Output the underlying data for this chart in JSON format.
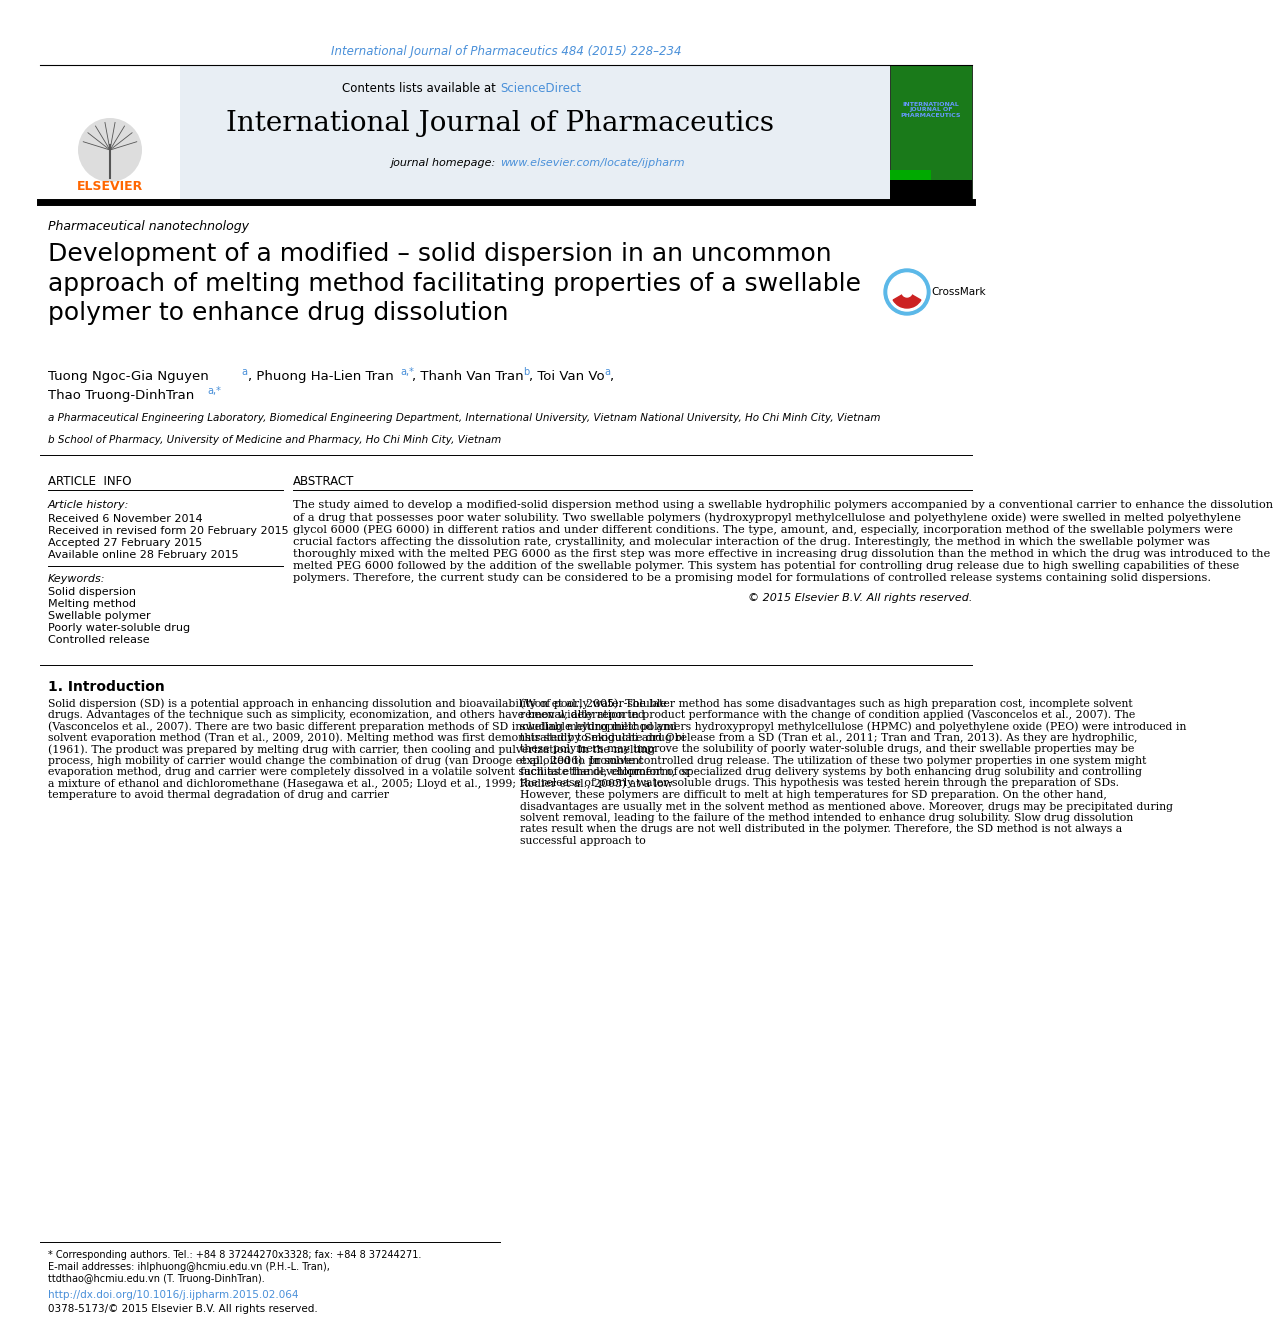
{
  "page_bg": "#ffffff",
  "top_citation": "International Journal of Pharmaceutics 484 (2015) 228–234",
  "top_citation_color": "#4a90d9",
  "header_bg": "#e8eef4",
  "journal_title": "International Journal of Pharmaceutics",
  "contents_text": "Contents lists available at ",
  "sciencedirect_text": "ScienceDirect",
  "sciencedirect_color": "#4a90d9",
  "homepage_text": "journal homepage: ",
  "homepage_url": "www.elsevier.com/locate/ijpharm",
  "homepage_color": "#4a90d9",
  "section_label": "Pharmaceutical nanotechnology",
  "article_title": "Development of a modified – solid dispersion in an uncommon\napproach of melting method facilitating properties of a swellable\npolymer to enhance drug dissolution",
  "article_info_title": "ARTICLE  INFO",
  "article_history_label": "Article history:",
  "received": "Received 6 November 2014",
  "revised": "Received in revised form 20 February 2015",
  "accepted": "Accepted 27 February 2015",
  "available": "Available online 28 February 2015",
  "keywords_label": "Keywords:",
  "keywords": [
    "Solid dispersion",
    "Melting method",
    "Swellable polymer",
    "Poorly water-soluble drug",
    "Controlled release"
  ],
  "abstract_title": "ABSTRACT",
  "abstract_text": "The study aimed to develop a modified-solid dispersion method using a swellable hydrophilic polymers accompanied by a conventional carrier to enhance the dissolution of a drug that possesses poor water solubility. Two swellable polymers (hydroxypropyl methylcellulose and polyethylene oxide) were swelled in melted polyethylene glycol 6000 (PEG 6000) in different ratios and under different conditions. The type, amount, and, especially, incorporation method of the swellable polymers were crucial factors affecting the dissolution rate, crystallinity, and molecular interaction of the drug. Interestingly, the method in which the swellable polymer was thoroughly mixed with the melted PEG 6000 as the first step was more effective in increasing drug dissolution than the method in which the drug was introduced to the melted PEG 6000 followed by the addition of the swellable polymer. This system has potential for controlling drug release due to high swelling capabilities of these polymers. Therefore, the current study can be considered to be a promising model for formulations of controlled release systems containing solid dispersions.",
  "copyright_text": "© 2015 Elsevier B.V. All rights reserved.",
  "intro_title": "1. Introduction",
  "intro_col1": "Solid dispersion (SD) is a potential approach in enhancing dissolution and bioavailability of poorly water-soluble drugs. Advantages of the technique such as simplicity, economization, and others have been widely reported (Vasconcelos et al., 2007). There are two basic different preparation methods of SD including melting method and solvent evaporation method (Tran et al., 2009, 2010). Melting method was first demonstrated by Sekiguchi and Obi (1961). The product was prepared by melting drug with carrier, then cooling and pulverization. In the melting process, high mobility of carrier would change the combination of drug (van Drooge et al., 2006). In solvent evaporation method, drug and carrier were completely dissolved in a volatile solvent such as ethanol, chloroform, or a mixture of ethanol and dichloromethane (Hasegawa et al., 2005; Lloyd et al., 1999; Rodier et al., 2005) at a low temperature to avoid thermal degradation of drug and carrier",
  "intro_col2": "(Won et al., 2005). The later method has some disadvantages such as high preparation cost, incomplete solvent removal, alteration in product performance with the change of condition applied (Vasconcelos et al., 2007). The swellable hydrophilic polymers hydroxypropyl methylcellulose (HPMC) and polyethylene oxide (PEO) were introduced in this study to modulate drug release from a SD (Tran et al., 2011; Tran and Tran, 2013). As they are hydrophilic, these polymers may improve the solubility of poorly water-soluble drugs, and their swellable properties may be exploited to promote controlled drug release. The utilization of these two polymer properties in one system might facilitate the development of specialized drug delivery systems by both enhancing drug solubility and controlling the release of poorly water-soluble drugs. This hypothesis was tested herein through the preparation of SDs. However, these polymers are difficult to melt at high temperatures for SD preparation. On the other hand, disadvantages are usually met in the solvent method as mentioned above. Moreover, drugs may be precipitated during solvent removal, leading to the failure of the method intended to enhance drug solubility. Slow drug dissolution rates result when the drugs are not well distributed in the polymer. Therefore, the SD method is not always a successful approach to",
  "footer_text1": "* Corresponding authors. Tel.: +84 8 37244270x3328; fax: +84 8 37244271.",
  "footer_text2": "E-mail addresses: ihlphuong@hcmiu.edu.vn (P.H.-L. Tran),",
  "footer_text3": "ttdthao@hcmiu.edu.vn (T. Truong-DinhTran).",
  "footer_doi": "http://dx.doi.org/10.1016/j.ijpharm.2015.02.064",
  "footer_issn": "0378-5173/© 2015 Elsevier B.V. All rights reserved.",
  "affiliation_a": "a Pharmaceutical Engineering Laboratory, Biomedical Engineering Department, International University, Vietnam National University, Ho Chi Minh City, Vietnam",
  "affiliation_b": "b School of Pharmacy, University of Medicine and Pharmacy, Ho Chi Minh City, Vietnam"
}
